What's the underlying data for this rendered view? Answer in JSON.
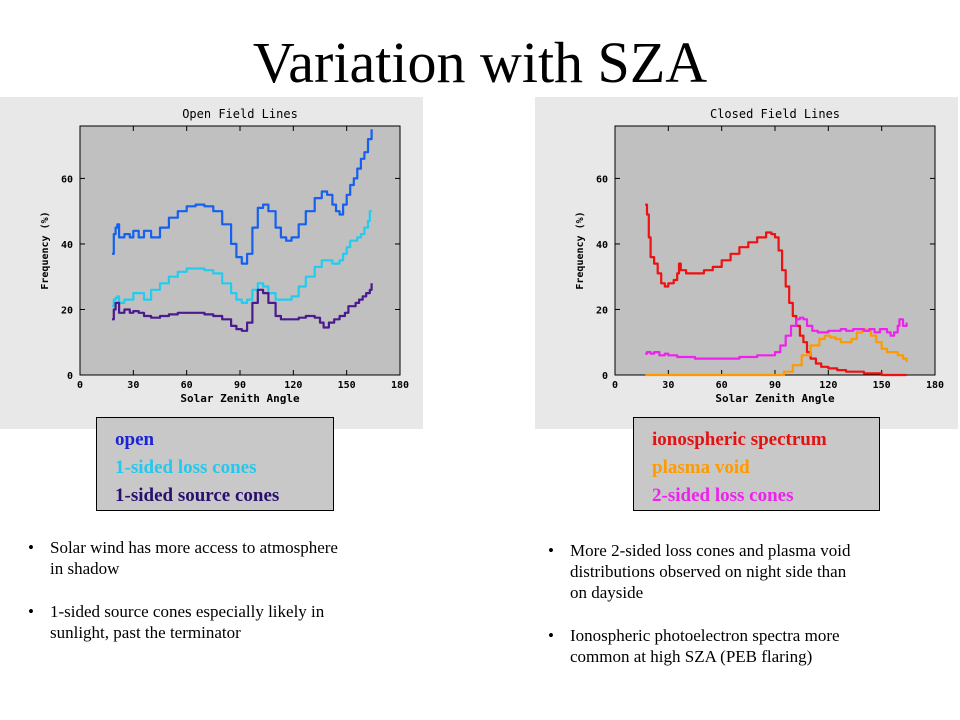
{
  "slide": {
    "title": "Variation with SZA"
  },
  "legends": {
    "left": [
      {
        "label": "open",
        "color": "#1a23d6"
      },
      {
        "label": "1-sided loss cones",
        "color": "#22c8ee"
      },
      {
        "label": "1-sided source cones",
        "color": "#2a0f6e"
      }
    ],
    "right": [
      {
        "label": "ionospheric spectrum",
        "color": "#e21212"
      },
      {
        "label": "plasma void",
        "color": "#ff9a00"
      },
      {
        "label": "2-sided loss cones",
        "color": "#ee22ee"
      }
    ]
  },
  "bullets": {
    "left": [
      "Solar wind has more access to atmosphere\n in shadow",
      "1-sided source cones especially likely in\n sunlight, past the terminator"
    ],
    "right": [
      "More 2-sided loss cones and plasma void\n distributions observed on night side than\n on dayside",
      "Ionospheric photoelectron spectra more\ncommon at high SZA (PEB flaring)"
    ],
    "marker": "•"
  },
  "chart_data": [
    {
      "type": "line",
      "title": "Open Field Lines",
      "xlabel": "Solar Zenith Angle",
      "ylabel": "Frequency (%)",
      "xlim": [
        0,
        180
      ],
      "ylim": [
        0,
        76
      ],
      "xticks": [
        0,
        30,
        60,
        90,
        120,
        150,
        180
      ],
      "yticks": [
        0,
        20,
        40,
        60
      ],
      "plot_bg": "#c0c0c0",
      "series": [
        {
          "name": "open",
          "color": "#1560ee",
          "points": [
            [
              18,
              37
            ],
            [
              19,
              43
            ],
            [
              20,
              45
            ],
            [
              21,
              46
            ],
            [
              22,
              42
            ],
            [
              25,
              43
            ],
            [
              28,
              42
            ],
            [
              30,
              44
            ],
            [
              33,
              42
            ],
            [
              36,
              44
            ],
            [
              40,
              42
            ],
            [
              45,
              45
            ],
            [
              50,
              48
            ],
            [
              55,
              50
            ],
            [
              60,
              51.5
            ],
            [
              65,
              52
            ],
            [
              70,
              51.5
            ],
            [
              75,
              50
            ],
            [
              80,
              46
            ],
            [
              85,
              40
            ],
            [
              88,
              36
            ],
            [
              91,
              34
            ],
            [
              94,
              37
            ],
            [
              97,
              45
            ],
            [
              100,
              51
            ],
            [
              103,
              52
            ],
            [
              106,
              50
            ],
            [
              110,
              45
            ],
            [
              113,
              42
            ],
            [
              116,
              41
            ],
            [
              119,
              42
            ],
            [
              123,
              46
            ],
            [
              127,
              50
            ],
            [
              132,
              54
            ],
            [
              136,
              56
            ],
            [
              139,
              55
            ],
            [
              142,
              52
            ],
            [
              144,
              50
            ],
            [
              146,
              49
            ],
            [
              148,
              52
            ],
            [
              150,
              55
            ],
            [
              152,
              58
            ],
            [
              154,
              60
            ],
            [
              156,
              63
            ],
            [
              158,
              66
            ],
            [
              160,
              68
            ],
            [
              162,
              72
            ],
            [
              164,
              75
            ]
          ]
        },
        {
          "name": "1-sided loss cones",
          "color": "#22ccee",
          "points": [
            [
              18,
              21
            ],
            [
              19,
              23
            ],
            [
              20,
              23.5
            ],
            [
              21,
              24
            ],
            [
              22,
              22
            ],
            [
              25,
              23
            ],
            [
              28,
              23
            ],
            [
              30,
              25
            ],
            [
              33,
              25
            ],
            [
              36,
              23
            ],
            [
              40,
              26
            ],
            [
              45,
              28
            ],
            [
              50,
              30
            ],
            [
              55,
              31.5
            ],
            [
              60,
              32.5
            ],
            [
              65,
              32.5
            ],
            [
              70,
              32
            ],
            [
              75,
              31
            ],
            [
              80,
              28
            ],
            [
              85,
              25
            ],
            [
              88,
              23
            ],
            [
              91,
              22
            ],
            [
              94,
              23
            ],
            [
              97,
              26
            ],
            [
              100,
              28
            ],
            [
              103,
              27
            ],
            [
              106,
              25
            ],
            [
              110,
              23
            ],
            [
              113,
              23
            ],
            [
              116,
              23
            ],
            [
              119,
              24
            ],
            [
              123,
              27
            ],
            [
              127,
              30
            ],
            [
              132,
              33
            ],
            [
              136,
              35
            ],
            [
              139,
              35
            ],
            [
              142,
              34
            ],
            [
              144,
              34
            ],
            [
              146,
              35
            ],
            [
              148,
              37
            ],
            [
              150,
              39
            ],
            [
              152,
              41
            ],
            [
              154,
              41
            ],
            [
              156,
              42
            ],
            [
              158,
              43
            ],
            [
              160,
              45
            ],
            [
              162,
              47
            ],
            [
              163,
              50
            ],
            [
              164,
              50
            ]
          ]
        },
        {
          "name": "1-sided source cones",
          "color": "#4b1a8e",
          "points": [
            [
              18,
              17
            ],
            [
              19,
              20
            ],
            [
              20,
              22
            ],
            [
              21,
              22
            ],
            [
              22,
              19
            ],
            [
              25,
              20
            ],
            [
              28,
              19
            ],
            [
              30,
              19.5
            ],
            [
              33,
              19
            ],
            [
              36,
              18
            ],
            [
              40,
              17.5
            ],
            [
              45,
              18
            ],
            [
              50,
              18.5
            ],
            [
              55,
              19
            ],
            [
              60,
              19
            ],
            [
              65,
              19
            ],
            [
              70,
              18.5
            ],
            [
              75,
              18
            ],
            [
              80,
              17
            ],
            [
              85,
              15
            ],
            [
              88,
              14
            ],
            [
              91,
              13.5
            ],
            [
              94,
              16
            ],
            [
              97,
              22
            ],
            [
              100,
              26
            ],
            [
              103,
              25
            ],
            [
              106,
              22
            ],
            [
              110,
              18
            ],
            [
              113,
              17
            ],
            [
              116,
              17
            ],
            [
              119,
              17
            ],
            [
              123,
              17.5
            ],
            [
              127,
              18
            ],
            [
              132,
              17.5
            ],
            [
              135,
              16
            ],
            [
              137,
              14.5
            ],
            [
              140,
              16
            ],
            [
              143,
              17
            ],
            [
              146,
              18
            ],
            [
              149,
              19
            ],
            [
              151,
              21
            ],
            [
              153,
              21
            ],
            [
              155,
              22
            ],
            [
              157,
              23
            ],
            [
              159,
              24
            ],
            [
              161,
              25
            ],
            [
              163,
              26
            ],
            [
              164,
              28
            ]
          ]
        }
      ]
    },
    {
      "type": "line",
      "title": "Closed Field Lines",
      "xlabel": "Solar Zenith Angle",
      "ylabel": "Frequency (%)",
      "xlim": [
        0,
        180
      ],
      "ylim": [
        0,
        76
      ],
      "xticks": [
        0,
        30,
        60,
        90,
        120,
        150,
        180
      ],
      "yticks": [
        0,
        20,
        40,
        60
      ],
      "plot_bg": "#c0c0c0",
      "series": [
        {
          "name": "ionospheric spectrum",
          "color": "#ee1111",
          "points": [
            [
              17,
              52
            ],
            [
              18,
              49
            ],
            [
              19,
              42
            ],
            [
              20,
              36
            ],
            [
              22,
              34
            ],
            [
              24,
              31
            ],
            [
              26,
              28
            ],
            [
              28,
              27
            ],
            [
              30,
              28
            ],
            [
              33,
              29
            ],
            [
              35,
              31
            ],
            [
              36,
              34
            ],
            [
              37,
              32
            ],
            [
              40,
              31
            ],
            [
              45,
              31
            ],
            [
              50,
              32
            ],
            [
              55,
              33
            ],
            [
              60,
              35
            ],
            [
              65,
              37
            ],
            [
              70,
              39
            ],
            [
              75,
              40.5
            ],
            [
              80,
              42
            ],
            [
              85,
              43.5
            ],
            [
              88,
              43
            ],
            [
              90,
              42
            ],
            [
              92,
              38
            ],
            [
              94,
              32
            ],
            [
              96,
              27
            ],
            [
              98,
              22
            ],
            [
              100,
              18
            ],
            [
              102,
              15
            ],
            [
              104,
              12
            ],
            [
              106,
              10
            ],
            [
              108,
              7
            ],
            [
              110,
              5
            ],
            [
              113,
              3.5
            ],
            [
              116,
              2.5
            ],
            [
              120,
              2
            ],
            [
              125,
              1.5
            ],
            [
              130,
              1
            ],
            [
              140,
              0.5
            ],
            [
              150,
              0
            ],
            [
              164,
              0
            ]
          ]
        },
        {
          "name": "plasma void",
          "color": "#ff9900",
          "points": [
            [
              17,
              0
            ],
            [
              30,
              0
            ],
            [
              50,
              0
            ],
            [
              70,
              0
            ],
            [
              85,
              0
            ],
            [
              95,
              1
            ],
            [
              100,
              3
            ],
            [
              105,
              6
            ],
            [
              110,
              9
            ],
            [
              115,
              11
            ],
            [
              118,
              12
            ],
            [
              121,
              11.5
            ],
            [
              124,
              11
            ],
            [
              127,
              10
            ],
            [
              130,
              10
            ],
            [
              133,
              11
            ],
            [
              136,
              13
            ],
            [
              139,
              14
            ],
            [
              141,
              13.5
            ],
            [
              144,
              12
            ],
            [
              147,
              10
            ],
            [
              150,
              8
            ],
            [
              153,
              7
            ],
            [
              156,
              7
            ],
            [
              159,
              6
            ],
            [
              162,
              5
            ],
            [
              164,
              4
            ]
          ]
        },
        {
          "name": "2-sided loss cones",
          "color": "#ee22ee",
          "points": [
            [
              17,
              6.5
            ],
            [
              18,
              7
            ],
            [
              20,
              6.5
            ],
            [
              22,
              7
            ],
            [
              25,
              6
            ],
            [
              28,
              6.5
            ],
            [
              30,
              6
            ],
            [
              35,
              5.5
            ],
            [
              40,
              5.5
            ],
            [
              45,
              5
            ],
            [
              50,
              5
            ],
            [
              60,
              5
            ],
            [
              70,
              5.5
            ],
            [
              80,
              6
            ],
            [
              85,
              6
            ],
            [
              90,
              7
            ],
            [
              93,
              9
            ],
            [
              96,
              12
            ],
            [
              99,
              15
            ],
            [
              102,
              17
            ],
            [
              104,
              17.5
            ],
            [
              106,
              17
            ],
            [
              108,
              15
            ],
            [
              111,
              13.5
            ],
            [
              114,
              13
            ],
            [
              117,
              13
            ],
            [
              120,
              13.5
            ],
            [
              124,
              13.5
            ],
            [
              127,
              14
            ],
            [
              130,
              13.5
            ],
            [
              134,
              14
            ],
            [
              137,
              14
            ],
            [
              140,
              13.5
            ],
            [
              143,
              14
            ],
            [
              146,
              13
            ],
            [
              149,
              14
            ],
            [
              151,
              14
            ],
            [
              153,
              13
            ],
            [
              155,
              12
            ],
            [
              157,
              13
            ],
            [
              159,
              15
            ],
            [
              160,
              17
            ],
            [
              162,
              15
            ],
            [
              164,
              16
            ]
          ]
        }
      ]
    }
  ]
}
